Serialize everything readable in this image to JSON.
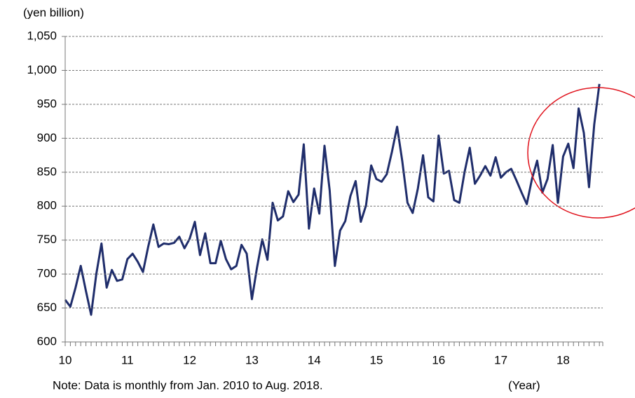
{
  "chart_data": {
    "type": "line",
    "y_axis_label": "(yen billion)",
    "x_axis_label": "(Year)",
    "note": "Note: Data is monthly from Jan. 2010 to Aug. 2018.",
    "categories": [
      "10",
      null,
      null,
      null,
      null,
      null,
      null,
      null,
      null,
      null,
      null,
      null,
      "11",
      null,
      null,
      null,
      null,
      null,
      null,
      null,
      null,
      null,
      null,
      null,
      "12",
      null,
      null,
      null,
      null,
      null,
      null,
      null,
      null,
      null,
      null,
      null,
      "13",
      null,
      null,
      null,
      null,
      null,
      null,
      null,
      null,
      null,
      null,
      null,
      "14",
      null,
      null,
      null,
      null,
      null,
      null,
      null,
      null,
      null,
      null,
      null,
      "15",
      null,
      null,
      null,
      null,
      null,
      null,
      null,
      null,
      null,
      null,
      null,
      "16",
      null,
      null,
      null,
      null,
      null,
      null,
      null,
      null,
      null,
      null,
      null,
      "17",
      null,
      null,
      null,
      null,
      null,
      null,
      null,
      null,
      null,
      null,
      null,
      "18",
      null,
      null,
      null,
      null,
      null,
      null,
      null
    ],
    "values": [
      662,
      652,
      680,
      712,
      675,
      640,
      700,
      745,
      680,
      706,
      690,
      692,
      722,
      730,
      718,
      703,
      740,
      773,
      740,
      745,
      744,
      746,
      755,
      738,
      752,
      777,
      728,
      760,
      716,
      716,
      749,
      722,
      707,
      712,
      743,
      730,
      663,
      710,
      751,
      721,
      805,
      779,
      785,
      822,
      806,
      817,
      891,
      767,
      826,
      789,
      889,
      823,
      712,
      764,
      778,
      815,
      837,
      777,
      801,
      860,
      840,
      836,
      847,
      880,
      917,
      866,
      805,
      790,
      826,
      875,
      813,
      807,
      904,
      848,
      852,
      809,
      805,
      850,
      886,
      833,
      845,
      859,
      845,
      872,
      842,
      850,
      855,
      838,
      820,
      803,
      840,
      867,
      820,
      840,
      890,
      805,
      873,
      892,
      856,
      944,
      908,
      828,
      920,
      980
    ],
    "color": "#1f2d6b",
    "ylim": [
      600,
      1050
    ],
    "yticks": [
      600,
      650,
      700,
      750,
      800,
      850,
      900,
      950,
      {
        "value": 1000,
        "label": "1,000"
      },
      {
        "value": 1050,
        "label": "1,050"
      }
    ],
    "grid": true
  }
}
